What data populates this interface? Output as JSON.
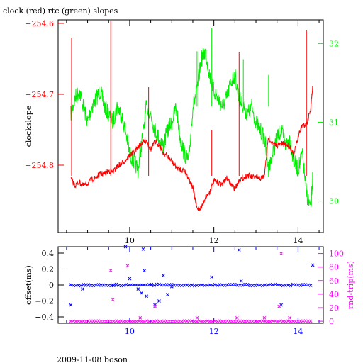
{
  "header": {
    "title": "clock (red) rtc (green) slopes",
    "footer": "2009-11-08 boson"
  },
  "colors": {
    "clock": "#ff0000",
    "rtc": "#00ee00",
    "offset": "#0000ff",
    "roundtrip": "#ff00ff",
    "axis": "#000000"
  },
  "chart_data": [
    {
      "type": "line",
      "title": "clock (red) rtc (green) slopes",
      "xlabel": "",
      "ylabel": "clockslope",
      "y2label": "",
      "xlim": [
        8.3,
        14.6
      ],
      "ylim": [
        -254.895,
        -254.595
      ],
      "y2lim": [
        29.6,
        32.3
      ],
      "xticks": [
        10,
        12,
        14
      ],
      "yticks": [
        -254.6,
        -254.7,
        -254.8
      ],
      "y2ticks": [
        30,
        31,
        32
      ],
      "grid": false,
      "series": [
        {
          "name": "clock",
          "color": "#ff0000",
          "axis": "left",
          "x": [
            8.6,
            8.7,
            8.8,
            8.9,
            9.0,
            9.1,
            9.2,
            9.3,
            9.4,
            9.5,
            9.6,
            9.7,
            9.8,
            9.9,
            10.0,
            10.1,
            10.2,
            10.3,
            10.4,
            10.5,
            10.6,
            10.7,
            10.8,
            10.9,
            11.0,
            11.1,
            11.2,
            11.3,
            11.4,
            11.5,
            11.6,
            11.7,
            11.8,
            11.9,
            12.0,
            12.1,
            12.2,
            12.3,
            12.4,
            12.5,
            12.6,
            12.7,
            12.8,
            12.9,
            13.0,
            13.1,
            13.2,
            13.3,
            13.4,
            13.5,
            13.6,
            13.7,
            13.8,
            13.9,
            14.0,
            14.1,
            14.2,
            14.3,
            14.35
          ],
          "values": [
            -254.819,
            -254.829,
            -254.824,
            -254.829,
            -254.826,
            -254.82,
            -254.818,
            -254.812,
            -254.812,
            -254.808,
            -254.81,
            -254.802,
            -254.798,
            -254.793,
            -254.786,
            -254.782,
            -254.774,
            -254.768,
            -254.765,
            -254.778,
            -254.767,
            -254.771,
            -254.783,
            -254.787,
            -254.795,
            -254.802,
            -254.806,
            -254.807,
            -254.818,
            -254.832,
            -254.862,
            -254.86,
            -254.845,
            -254.838,
            -254.822,
            -254.825,
            -254.827,
            -254.818,
            -254.827,
            -254.833,
            -254.821,
            -254.818,
            -254.814,
            -254.817,
            -254.817,
            -254.819,
            -254.815,
            -254.76,
            -254.77,
            -254.772,
            -254.77,
            -254.77,
            -254.773,
            -254.786,
            -254.76,
            -254.743,
            -254.743,
            -254.72,
            -254.688
          ]
        },
        {
          "name": "rtc",
          "color": "#00ee00",
          "axis": "right",
          "x": [
            8.6,
            8.7,
            8.8,
            8.9,
            9.0,
            9.1,
            9.2,
            9.3,
            9.4,
            9.5,
            9.6,
            9.7,
            9.8,
            9.9,
            10.0,
            10.1,
            10.2,
            10.3,
            10.4,
            10.5,
            10.6,
            10.7,
            10.8,
            10.9,
            11.0,
            11.1,
            11.2,
            11.3,
            11.4,
            11.5,
            11.6,
            11.7,
            11.8,
            11.9,
            12.0,
            12.1,
            12.2,
            12.3,
            12.4,
            12.5,
            12.6,
            12.7,
            12.8,
            12.9,
            13.0,
            13.1,
            13.2,
            13.3,
            13.4,
            13.5,
            13.6,
            13.7,
            13.8,
            13.9,
            14.0,
            14.1,
            14.2,
            14.3,
            14.35
          ],
          "values": [
            31.1,
            31.3,
            31.4,
            31.2,
            31.0,
            31.2,
            31.3,
            31.4,
            31.2,
            31.1,
            31.0,
            31.2,
            31.1,
            30.9,
            30.6,
            30.5,
            30.4,
            30.8,
            31.2,
            31.1,
            30.9,
            30.8,
            30.7,
            30.9,
            31.0,
            31.2,
            30.8,
            30.6,
            30.5,
            31.2,
            31.4,
            31.8,
            31.9,
            31.6,
            31.4,
            31.3,
            31.2,
            31.3,
            31.5,
            31.6,
            31.3,
            31.2,
            31.1,
            31.2,
            31.0,
            30.9,
            30.8,
            30.4,
            30.6,
            30.8,
            30.9,
            30.7,
            30.8,
            30.5,
            30.4,
            30.6,
            30.1,
            29.9,
            30.3
          ]
        }
      ]
    },
    {
      "type": "scatter",
      "title": "",
      "xlabel": "",
      "ylabel": "offset(ms)",
      "y2label": "rnd-trip(ms)",
      "xlim": [
        8.3,
        14.6
      ],
      "ylim": [
        -0.48,
        0.48
      ],
      "y2lim": [
        -3,
        110
      ],
      "xticks": [
        10,
        12,
        14
      ],
      "yticks": [
        0.4,
        0.2,
        0,
        -0.2,
        -0.4
      ],
      "y2ticks": [
        100,
        80,
        60,
        40,
        20,
        0
      ],
      "grid": false,
      "series": [
        {
          "name": "offset",
          "color": "#0000ff",
          "axis": "left",
          "baseline": 0.0,
          "outliers_x": [
            8.6,
            8.88,
            9.6,
            9.9,
            10.0,
            10.2,
            10.28,
            10.32,
            10.35,
            10.4,
            10.5,
            10.6,
            10.7,
            10.8,
            10.9,
            11.0,
            11.95,
            12.6,
            12.65,
            13.6,
            14.35
          ],
          "outliers_y": [
            -0.25,
            -0.05,
            0.0,
            0.48,
            0.08,
            -0.05,
            -0.1,
            0.45,
            0.18,
            -0.14,
            0.0,
            -0.25,
            -0.2,
            0.12,
            -0.12,
            -0.02,
            0.1,
            0.44,
            0.05,
            -0.25,
            0.25
          ]
        },
        {
          "name": "round-trip",
          "color": "#ff00ff",
          "axis": "right",
          "baseline": 0,
          "outliers_x": [
            9.55,
            9.6,
            9.95,
            10.25,
            10.6,
            11.6,
            12.55,
            13.2,
            13.55,
            13.6,
            13.8
          ],
          "outliers_y": [
            75,
            32,
            82,
            5,
            22,
            5,
            5,
            5,
            22,
            100,
            5
          ]
        }
      ]
    }
  ]
}
